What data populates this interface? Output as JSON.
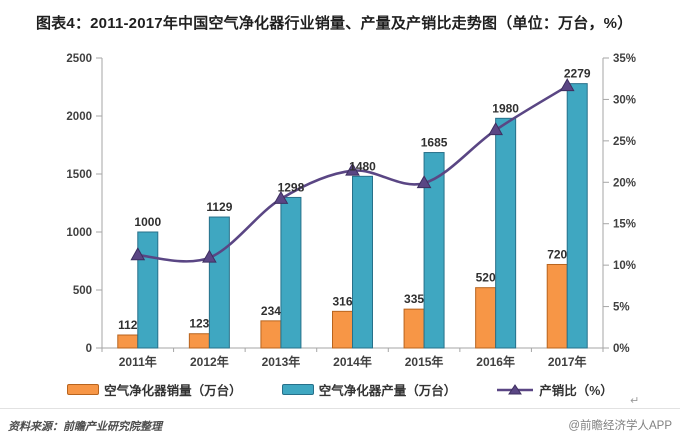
{
  "title": "图表4：2011-2017年中国空气净化器行业销量、产量及产销比走势图（单位：万台，%）",
  "chart_data": {
    "type": "bar+line combo",
    "title": "图表4：2011-2017年中国空气净化器行业销量、产量及产销比走势图（单位：万台，%）",
    "categories": [
      "2011年",
      "2012年",
      "2013年",
      "2014年",
      "2015年",
      "2016年",
      "2017年"
    ],
    "series": [
      {
        "name": "空气净化器销量（万台）",
        "type": "bar",
        "axis": "left",
        "color": "#F79646",
        "border": "#B8641E",
        "values": [
          112,
          123,
          234,
          316,
          335,
          520,
          720
        ]
      },
      {
        "name": "空气净化器产量（万台）",
        "type": "bar",
        "axis": "left",
        "color": "#3FA7C1",
        "border": "#27708A",
        "values": [
          1000,
          1129,
          1298,
          1480,
          1685,
          1980,
          2279
        ]
      },
      {
        "name": "产销比（%）",
        "type": "line",
        "axis": "right",
        "color": "#5A4684",
        "marker": "triangle",
        "marker_border": "#3E2F60",
        "values": [
          11.2,
          10.9,
          18.0,
          21.4,
          19.9,
          26.3,
          31.6
        ]
      }
    ],
    "left_axis": {
      "min": 0,
      "max": 2500,
      "ticks": [
        0,
        500,
        1000,
        1500,
        2000,
        2500
      ]
    },
    "right_axis": {
      "min": 0,
      "max": 35,
      "tick_labels": [
        "0%",
        "5%",
        "10%",
        "15%",
        "20%",
        "25%",
        "30%",
        "35%"
      ]
    },
    "grid": false,
    "legend_position": "bottom",
    "data_labels": true
  },
  "footer": {
    "source": "资料来源：前瞻产业研究院整理",
    "credit": "@前瞻经济学人APP",
    "return_mark": "↵"
  }
}
